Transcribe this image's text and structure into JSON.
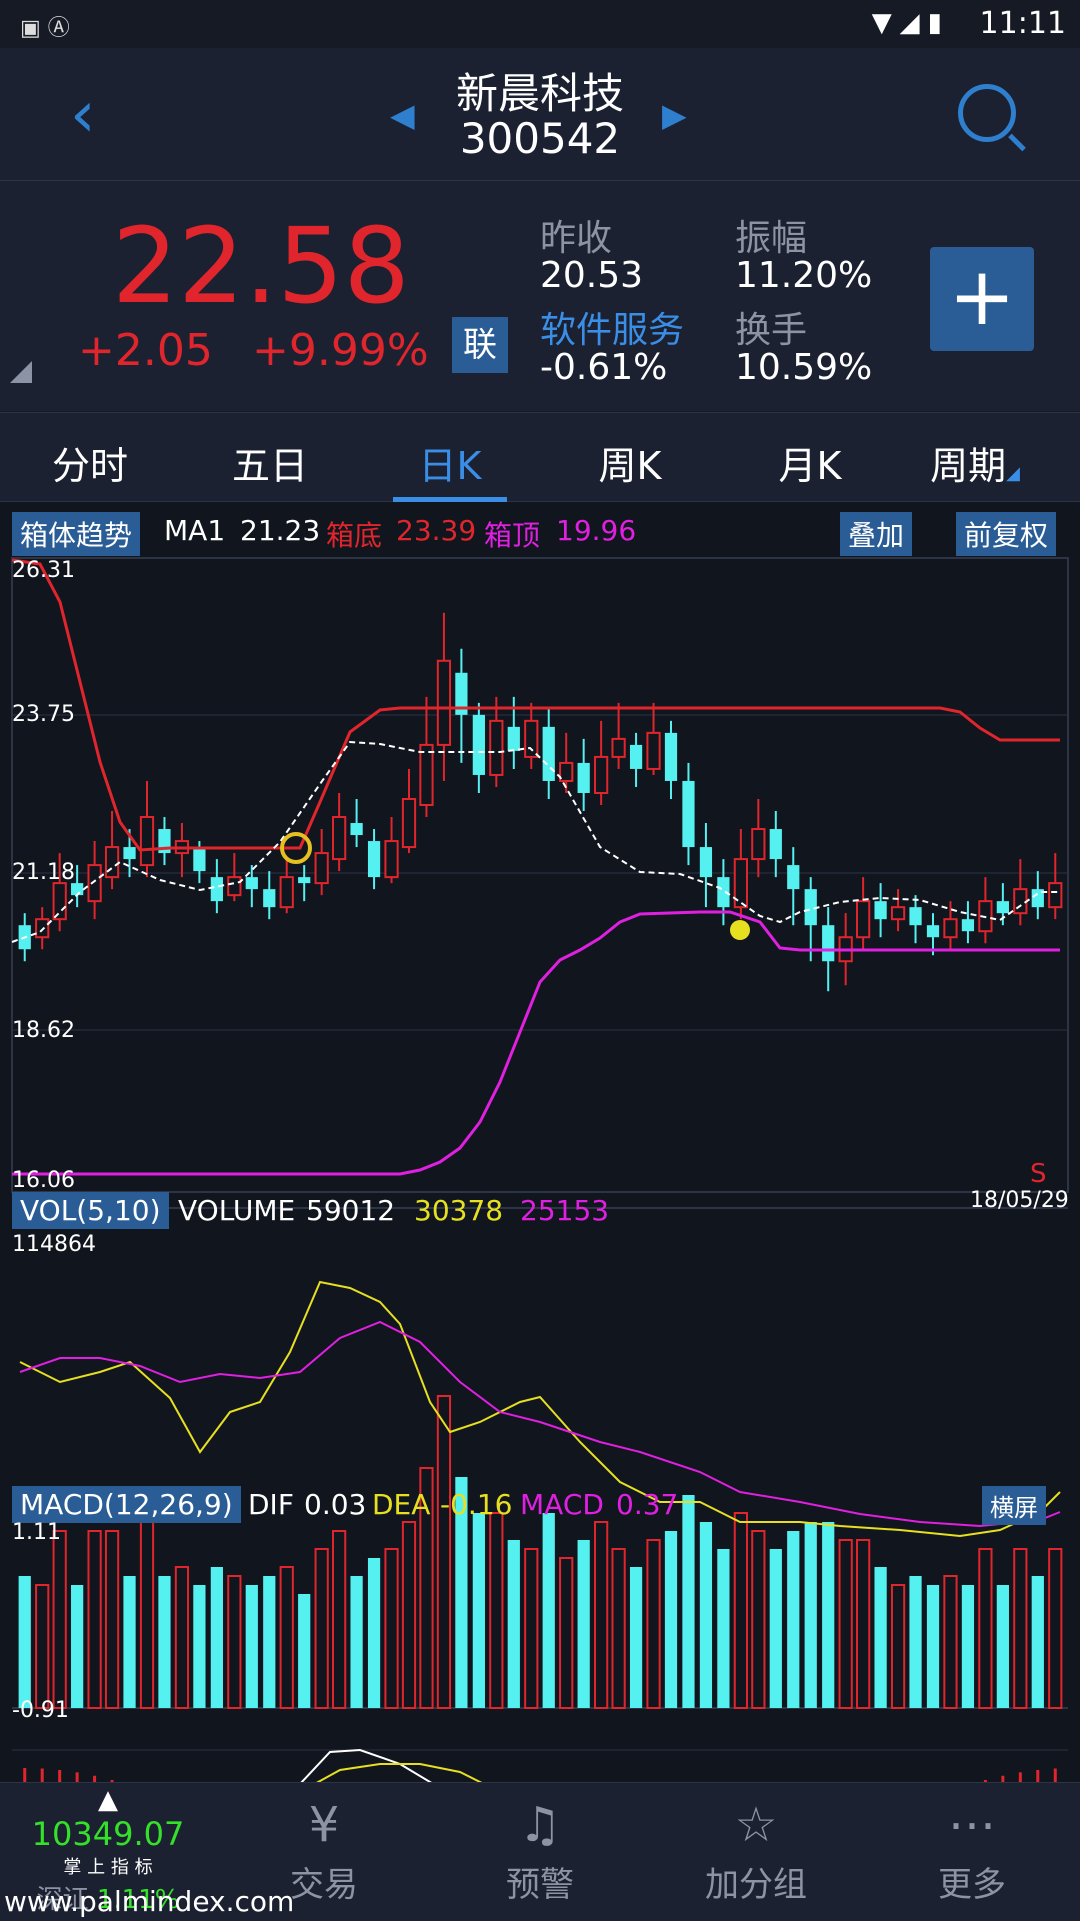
{
  "status": {
    "time": "11:11"
  },
  "header": {
    "title": "新晨科技",
    "code": "300542"
  },
  "quote": {
    "price": "22.58",
    "change": "+2.05",
    "change_pct": "+9.99%",
    "lian_label": "联",
    "prev_close_label": "昨收",
    "prev_close": "20.53",
    "amplitude_label": "振幅",
    "amplitude": "11.20%",
    "sector_label": "软件服务",
    "sector_change": "-0.61%",
    "turnover_label": "换手",
    "turnover": "10.59%"
  },
  "tabs": [
    {
      "label": "分时"
    },
    {
      "label": "五日"
    },
    {
      "label": "日K"
    },
    {
      "label": "周K"
    },
    {
      "label": "月K"
    },
    {
      "label": "周期"
    }
  ],
  "main_chart": {
    "indicator_label": "箱体趋势",
    "ma1_label": "MA1",
    "ma1_value": "21.23",
    "box_bottom_label": "箱底",
    "box_bottom_value": "23.39",
    "box_top_label": "箱顶",
    "box_top_value": "19.96",
    "overlay_button": "叠加",
    "adjust_button": "前复权",
    "ticks": [
      "26.31",
      "23.75",
      "21.18",
      "18.62",
      "16.06"
    ],
    "date": "18/05/29",
    "signal": "S"
  },
  "vol_chart": {
    "label": "VOL(5,10)",
    "volume_label": "VOLUME",
    "volume": "59012",
    "ma5": "30378",
    "ma10": "25153",
    "max_tick": "114864"
  },
  "macd_chart": {
    "label": "MACD(12,26,9)",
    "dif_label": "DIF",
    "dif": "0.03",
    "dea_label": "DEA",
    "dea": "-0.16",
    "macd_label": "MACD",
    "macd": "0.37",
    "landscape_button": "横屏",
    "top_tick": "1.11",
    "bottom_tick": "-0.91"
  },
  "bottom_nav": {
    "index_value": "10349.07",
    "index_caption": "掌 上 指 标",
    "index_name": "深证",
    "index_change": "1.11%",
    "watermark": "www.palmindex.com",
    "items": [
      {
        "label": "交易"
      },
      {
        "label": "预警"
      },
      {
        "label": "加分组"
      },
      {
        "label": "更多"
      }
    ]
  },
  "colors": {
    "red": "#e0262c",
    "cyan": "#55f0f0",
    "green": "#35e02a",
    "magenta": "#e020e0",
    "yellow": "#e6e020",
    "blue": "#3a8ee6"
  },
  "chart_data": {
    "type": "candlestick",
    "ylim": [
      16.06,
      26.31
    ],
    "candles": [
      [
        20.2,
        19.8,
        20.4,
        19.6
      ],
      [
        20.0,
        20.3,
        20.5,
        19.8
      ],
      [
        20.3,
        20.9,
        21.4,
        20.1
      ],
      [
        20.9,
        20.7,
        21.2,
        20.5
      ],
      [
        20.6,
        21.2,
        21.6,
        20.3
      ],
      [
        21.0,
        21.5,
        22.1,
        20.8
      ],
      [
        21.5,
        21.3,
        21.8,
        21.0
      ],
      [
        21.2,
        22.0,
        22.6,
        21.0
      ],
      [
        21.8,
        21.4,
        22.0,
        21.2
      ],
      [
        21.4,
        21.6,
        21.9,
        21.0
      ],
      [
        21.5,
        21.1,
        21.6,
        20.9
      ],
      [
        21.0,
        20.6,
        21.3,
        20.4
      ],
      [
        20.7,
        21.0,
        21.4,
        20.6
      ],
      [
        21.0,
        20.8,
        21.2,
        20.5
      ],
      [
        20.8,
        20.5,
        21.1,
        20.3
      ],
      [
        20.5,
        21.0,
        21.3,
        20.4
      ],
      [
        21.0,
        20.9,
        21.2,
        20.6
      ],
      [
        20.9,
        21.4,
        21.8,
        20.7
      ],
      [
        21.3,
        22.0,
        22.4,
        21.1
      ],
      [
        21.9,
        21.7,
        22.3,
        21.5
      ],
      [
        21.6,
        21.0,
        21.8,
        20.8
      ],
      [
        21.0,
        21.6,
        22.0,
        20.9
      ],
      [
        21.5,
        22.3,
        22.8,
        21.4
      ],
      [
        22.2,
        23.2,
        24.0,
        22.0
      ],
      [
        23.2,
        24.6,
        25.4,
        22.6
      ],
      [
        24.4,
        23.7,
        24.8,
        22.9
      ],
      [
        23.7,
        22.7,
        23.9,
        22.4
      ],
      [
        22.7,
        23.6,
        24.0,
        22.5
      ],
      [
        23.5,
        23.1,
        24.0,
        22.8
      ],
      [
        23.0,
        23.6,
        23.9,
        22.8
      ],
      [
        23.5,
        22.6,
        23.8,
        22.3
      ],
      [
        22.6,
        22.9,
        23.4,
        22.4
      ],
      [
        22.9,
        22.4,
        23.3,
        22.1
      ],
      [
        22.4,
        23.0,
        23.6,
        22.2
      ],
      [
        23.0,
        23.3,
        23.9,
        22.8
      ],
      [
        23.2,
        22.8,
        23.4,
        22.5
      ],
      [
        22.8,
        23.4,
        23.9,
        22.7
      ],
      [
        23.4,
        22.6,
        23.6,
        22.3
      ],
      [
        22.6,
        21.5,
        22.9,
        21.2
      ],
      [
        21.5,
        21.0,
        21.9,
        20.5
      ],
      [
        21.0,
        20.5,
        21.3,
        20.2
      ],
      [
        20.5,
        21.3,
        21.8,
        20.3
      ],
      [
        21.3,
        21.8,
        22.3,
        21.0
      ],
      [
        21.8,
        21.3,
        22.1,
        21.0
      ],
      [
        21.2,
        20.8,
        21.5,
        20.2
      ],
      [
        20.8,
        20.2,
        21.0,
        19.6
      ],
      [
        20.2,
        19.6,
        20.5,
        19.1
      ],
      [
        19.6,
        20.0,
        20.4,
        19.2
      ],
      [
        20.0,
        20.6,
        21.0,
        19.8
      ],
      [
        20.6,
        20.3,
        20.9,
        20.0
      ],
      [
        20.3,
        20.5,
        20.8,
        20.1
      ],
      [
        20.5,
        20.2,
        20.7,
        19.9
      ],
      [
        20.2,
        20.0,
        20.4,
        19.7
      ],
      [
        20.0,
        20.3,
        20.6,
        19.8
      ],
      [
        20.3,
        20.1,
        20.6,
        19.9
      ],
      [
        20.1,
        20.6,
        21.0,
        19.9
      ],
      [
        20.6,
        20.4,
        20.9,
        20.2
      ],
      [
        20.4,
        20.8,
        21.3,
        20.2
      ],
      [
        20.8,
        20.5,
        21.1,
        20.3
      ],
      [
        20.5,
        20.9,
        21.4,
        20.3
      ]
    ]
  }
}
